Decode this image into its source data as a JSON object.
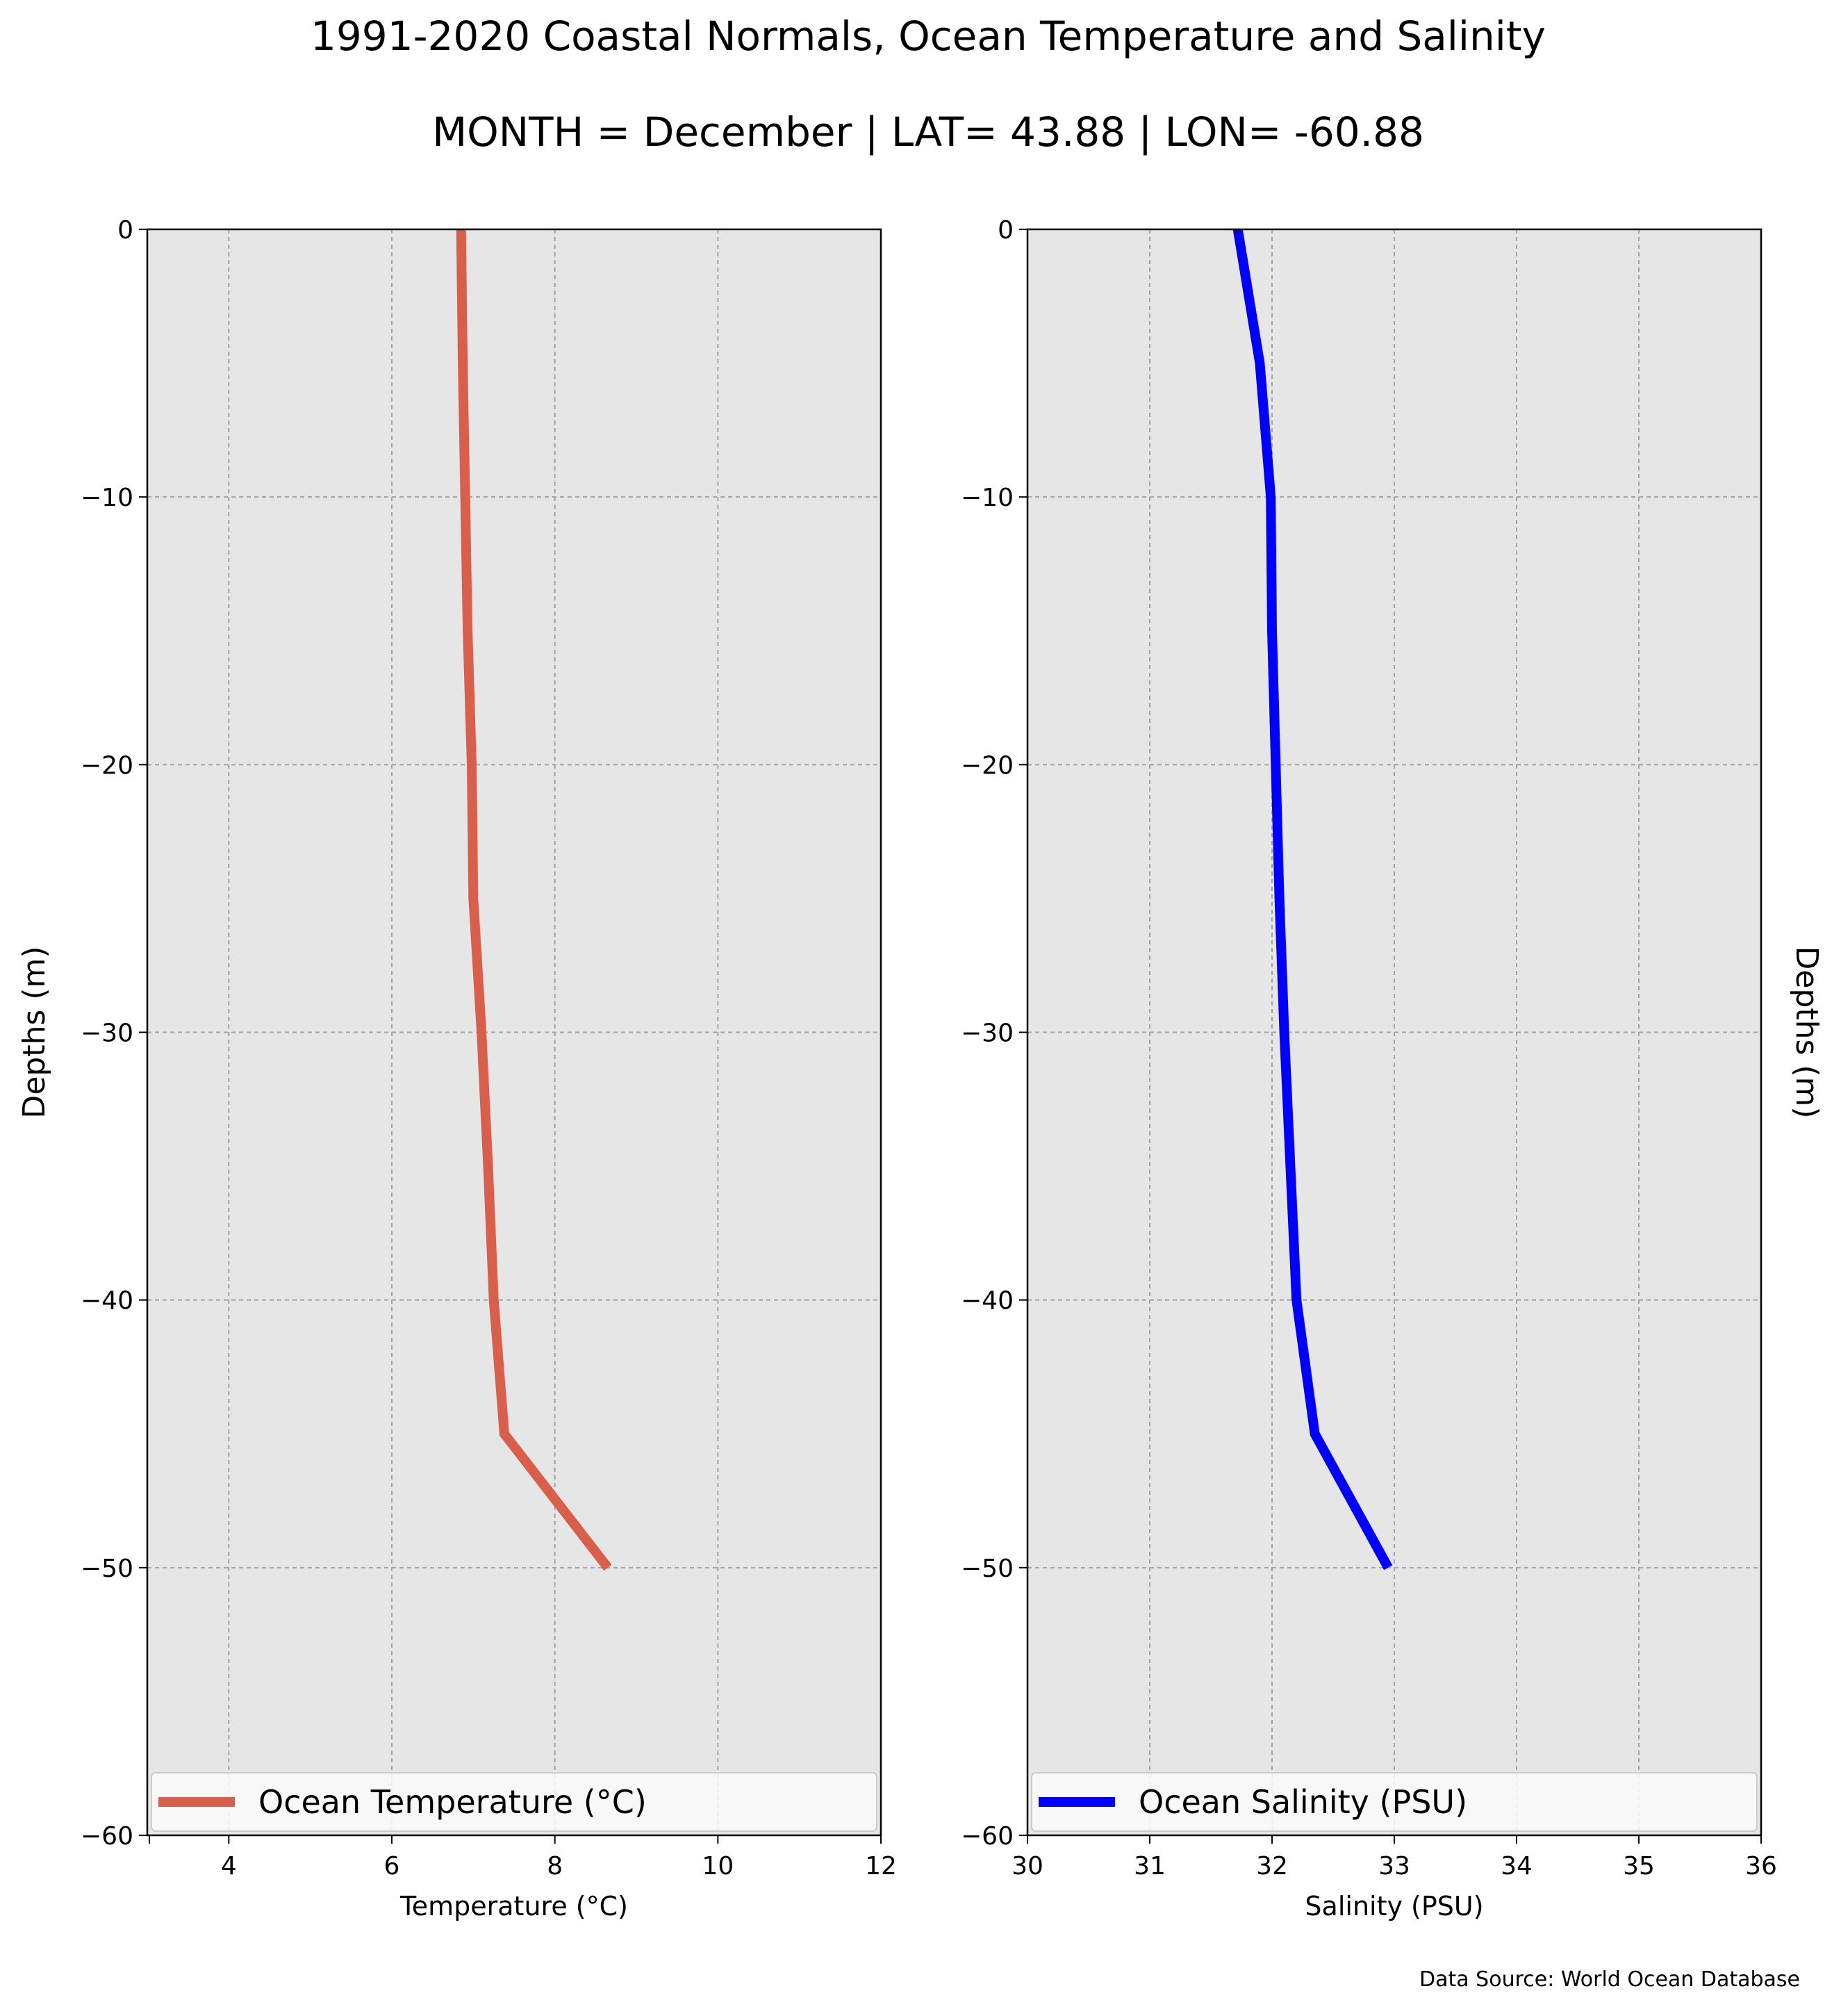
{
  "figure": {
    "title": "1991-2020 Coastal Normals, Ocean Temperature and Salinity",
    "subtitle": "MONTH = December | LAT= 43.88 | LON= -60.88",
    "source_note": "Data Source: World Ocean Database",
    "panel_background": "#e6e6e6",
    "grid_color": "#a3a3a3"
  },
  "chart_data": [
    {
      "type": "line",
      "xlabel": "Temperature ($^\\circ$C)",
      "ylabel": "Depths (m)",
      "xlim": [
        3,
        12
      ],
      "ylim": [
        -60,
        0
      ],
      "xticks": [
        4,
        6,
        8,
        10,
        12
      ],
      "yticks": [
        0,
        -10,
        -20,
        -30,
        -40,
        -50,
        -60
      ],
      "xtick_labels": [
        "4",
        "6",
        "8",
        "10",
        "12"
      ],
      "ytick_labels": [
        "0",
        "−10",
        "−20",
        "−30",
        "−40",
        "−50",
        "−60"
      ],
      "grid": true,
      "legend_position": "bottom",
      "series": [
        {
          "name": "Ocean Temperature ($^\\circ$C)",
          "color": "#d95f4b",
          "x": [
            6.85,
            6.87,
            6.9,
            6.93,
            6.98,
            7.0,
            7.1,
            7.18,
            7.25,
            7.38,
            8.65
          ],
          "y": [
            0,
            -5,
            -10,
            -15,
            -20,
            -25,
            -30,
            -35,
            -40,
            -45,
            -50
          ]
        }
      ]
    },
    {
      "type": "line",
      "xlabel": "Salinity (PSU)",
      "ylabel": "Depths (m)",
      "xlim": [
        30,
        36
      ],
      "ylim": [
        -60,
        0
      ],
      "xticks": [
        30,
        31,
        32,
        33,
        34,
        35,
        36
      ],
      "yticks": [
        0,
        -10,
        -20,
        -30,
        -40,
        -50,
        -60
      ],
      "xtick_labels": [
        "30",
        "31",
        "32",
        "33",
        "34",
        "35",
        "36"
      ],
      "ytick_labels": [
        "0",
        "−10",
        "−20",
        "−30",
        "−40",
        "−50",
        "−60"
      ],
      "grid": true,
      "legend_position": "bottom",
      "series": [
        {
          "name": "Ocean Salinity (PSU)",
          "color": "#0000ff",
          "x": [
            31.72,
            31.9,
            31.99,
            32.0,
            32.03,
            32.06,
            32.1,
            32.15,
            32.2,
            32.35,
            32.95
          ],
          "y": [
            0,
            -5,
            -10,
            -15,
            -20,
            -25,
            -30,
            -35,
            -40,
            -45,
            -50
          ]
        }
      ]
    }
  ]
}
